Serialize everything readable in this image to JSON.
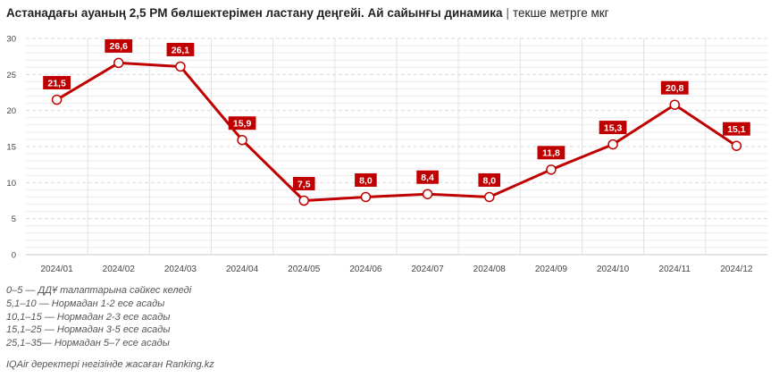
{
  "title": {
    "main": "Астанадағы ауаның 2,5 PM бөлшектерімен ластану деңгейі. Ай сайынғы динамика",
    "separator": "|",
    "unit": "текше метрге мкг"
  },
  "chart_data": {
    "type": "line",
    "categories": [
      "2024/01",
      "2024/02",
      "2024/03",
      "2024/04",
      "2024/05",
      "2024/06",
      "2024/07",
      "2024/08",
      "2024/09",
      "2024/10",
      "2024/11",
      "2024/12"
    ],
    "values": [
      21.5,
      26.6,
      26.1,
      15.9,
      7.5,
      8.0,
      8.4,
      8.0,
      11.8,
      15.3,
      20.8,
      15.1
    ],
    "labels": [
      "21,5",
      "26,6",
      "26,1",
      "15,9",
      "7,5",
      "8,0",
      "8,4",
      "8,0",
      "11,8",
      "15,3",
      "20,8",
      "15,1"
    ],
    "ylim": [
      0,
      30
    ],
    "yticks": [
      "0",
      "5",
      "10",
      "15",
      "20",
      "25",
      "30"
    ],
    "grid": true,
    "line_color": "#c00000"
  },
  "notes": [
    "0–5 — ДДҰ талаптарына сәйкес келеді",
    "5,1–10 — Нормадан 1-2 есе асады",
    "10,1–15 — Нормадан 2-3 есе асады",
    "15,1–25 — Нормадан 3-5 есе асады",
    "25,1–35— Нормадан 5–7 есе асады"
  ],
  "source": "IQAir деректері негізінде жасаған Ranking.kz"
}
